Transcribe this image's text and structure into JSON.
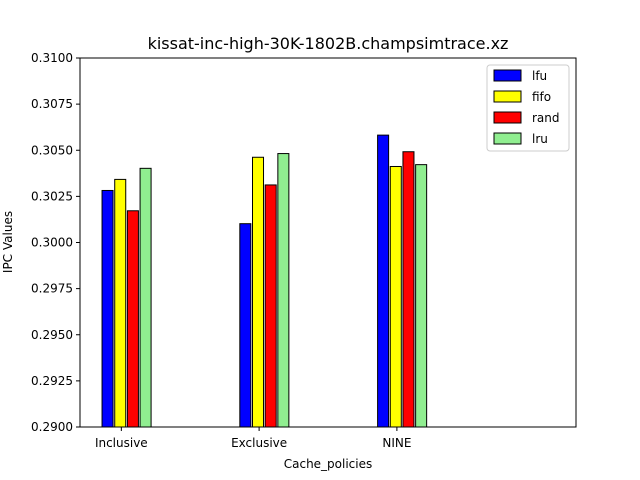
{
  "chart_data": {
    "type": "bar",
    "title": "kissat-inc-high-30K-1802B.champsimtrace.xz",
    "xlabel": "Cache_policies",
    "ylabel": "IPC Values",
    "categories": [
      "Inclusive",
      "Exclusive",
      "NINE"
    ],
    "ylim": [
      0.29,
      0.31
    ],
    "yticks": [
      "0.2900",
      "0.2925",
      "0.2950",
      "0.2975",
      "0.3000",
      "0.3025",
      "0.3050",
      "0.3075",
      "0.3100"
    ],
    "grid": false,
    "legend_position": "top-right",
    "series": [
      {
        "name": "lfu",
        "color": "#0000ff",
        "values": [
          0.30282,
          0.30102,
          0.30582
        ]
      },
      {
        "name": "fifo",
        "color": "#ffff00",
        "values": [
          0.30342,
          0.30462,
          0.30412
        ]
      },
      {
        "name": "rand",
        "color": "#ff0000",
        "values": [
          0.30172,
          0.30312,
          0.30492
        ]
      },
      {
        "name": "lru",
        "color": "#90ee90",
        "values": [
          0.30402,
          0.30482,
          0.30422
        ]
      }
    ]
  }
}
